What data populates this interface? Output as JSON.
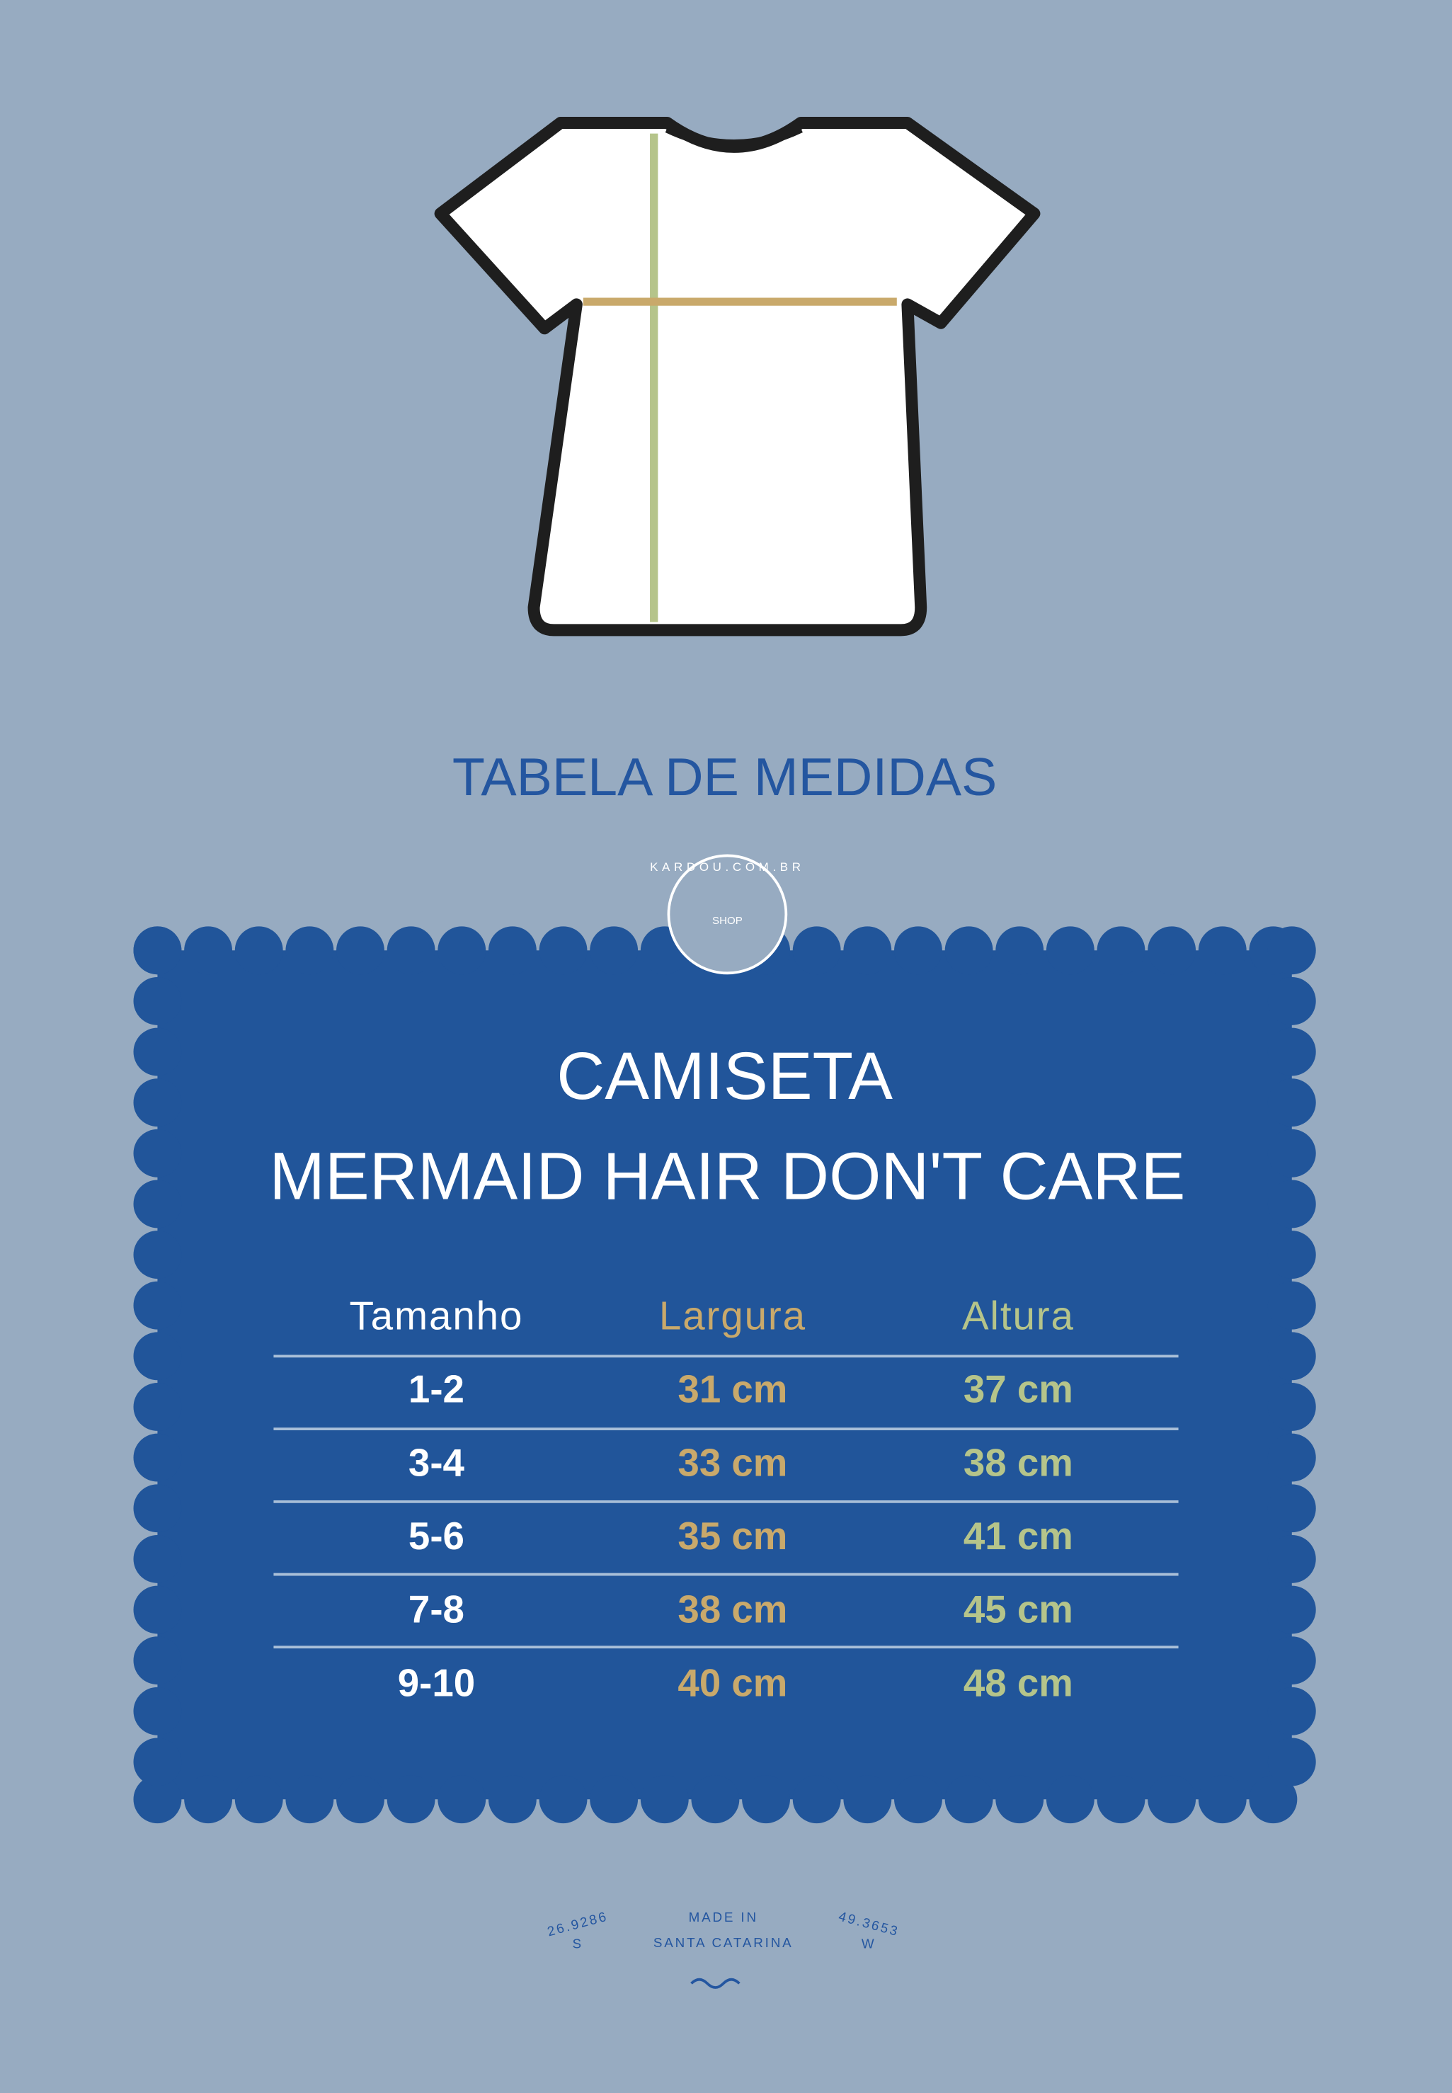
{
  "header": {
    "title": "TABELA DE MEDIDAS"
  },
  "badge": {
    "ring_text": "KARDOU.COM.BR",
    "center_text": "SHOP"
  },
  "card": {
    "title_lines": [
      "CAMISETA",
      "MERMAID HAIR DON'T CARE"
    ]
  },
  "table": {
    "headers": [
      "Tamanho",
      "Largura",
      "Altura"
    ],
    "rows": [
      [
        "1-2",
        "31 cm",
        "37 cm"
      ],
      [
        "3-4",
        "33 cm",
        "38 cm"
      ],
      [
        "5-6",
        "35 cm",
        "41 cm"
      ],
      [
        "7-8",
        "38 cm",
        "45 cm"
      ],
      [
        "9-10",
        "40 cm",
        "48 cm"
      ]
    ]
  },
  "footer": {
    "left": [
      "26.9286",
      "S"
    ],
    "center": [
      "MADE IN",
      "SANTA CATARINA"
    ],
    "right": [
      "49.3653",
      "W"
    ]
  }
}
